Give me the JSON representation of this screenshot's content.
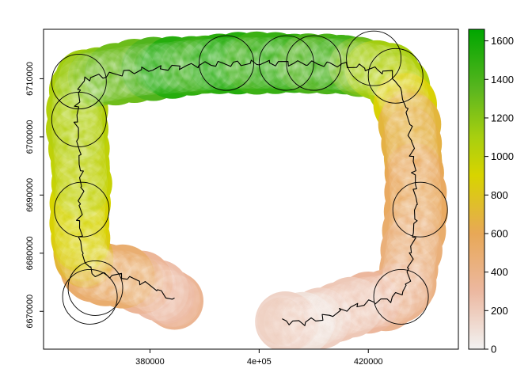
{
  "map": {
    "title": "",
    "x_ticks": [
      {
        "value": 380000,
        "label": "380000"
      },
      {
        "value": 400000,
        "label": "4e+05"
      },
      {
        "value": 420000,
        "label": "420000"
      }
    ],
    "y_ticks": [
      {
        "value": 6670000,
        "label": "6670000"
      },
      {
        "value": 6680000,
        "label": "6680000"
      },
      {
        "value": 6690000,
        "label": "6690000"
      },
      {
        "value": 6700000,
        "label": "6700000"
      },
      {
        "value": 6710000,
        "label": "6710000"
      }
    ],
    "x_range": [
      360500,
      436500
    ],
    "y_range": [
      6663500,
      6718500
    ],
    "colors": {
      "panel_border": "#000000",
      "outline": "#000000",
      "route": "#000000"
    }
  },
  "legend": {
    "ticks": [
      {
        "value": 0,
        "label": "0"
      },
      {
        "value": 200,
        "label": "200"
      },
      {
        "value": 400,
        "label": "400"
      },
      {
        "value": 600,
        "label": "600"
      },
      {
        "value": 800,
        "label": "800"
      },
      {
        "value": 1000,
        "label": "1000"
      },
      {
        "value": 1200,
        "label": "1200"
      },
      {
        "value": 1400,
        "label": "1400"
      },
      {
        "value": 1600,
        "label": "1600"
      }
    ],
    "range": [
      0,
      1660
    ],
    "color_stops": [
      {
        "value": 0,
        "color": "#f2f2f2"
      },
      {
        "value": 300,
        "color": "#ecb8a0"
      },
      {
        "value": 600,
        "color": "#e8a857"
      },
      {
        "value": 900,
        "color": "#d8d400"
      },
      {
        "value": 1100,
        "color": "#a8cf0f"
      },
      {
        "value": 1350,
        "color": "#5ab61f"
      },
      {
        "value": 1660,
        "color": "#00a600"
      }
    ]
  },
  "corridor": {
    "path": [
      [
        384500,
        6671800
      ],
      [
        380000,
        6674500
      ],
      [
        375000,
        6676000
      ],
      [
        369500,
        6676500
      ],
      [
        367500,
        6680000
      ],
      [
        367000,
        6686000
      ],
      [
        367500,
        6692000
      ],
      [
        367000,
        6698000
      ],
      [
        366500,
        6703000
      ],
      [
        367000,
        6708000
      ],
      [
        368000,
        6710000
      ],
      [
        372000,
        6710500
      ],
      [
        378000,
        6711500
      ],
      [
        385000,
        6712000
      ],
      [
        391000,
        6712500
      ],
      [
        397000,
        6712700
      ],
      [
        403000,
        6712700
      ],
      [
        409000,
        6712600
      ],
      [
        415000,
        6712500
      ],
      [
        420000,
        6711800
      ],
      [
        424000,
        6711000
      ],
      [
        426000,
        6708000
      ],
      [
        427500,
        6703000
      ],
      [
        428000,
        6698000
      ],
      [
        428500,
        6693000
      ],
      [
        428800,
        6688000
      ],
      [
        428300,
        6683000
      ],
      [
        427500,
        6678000
      ],
      [
        427000,
        6674000
      ],
      [
        424000,
        6672000
      ],
      [
        420000,
        6671500
      ],
      [
        416000,
        6670500
      ],
      [
        412000,
        6669000
      ],
      [
        408000,
        6668000
      ],
      [
        404000,
        6668300
      ]
    ],
    "circles": [
      [
        367000,
        6709500
      ],
      [
        367000,
        6703000
      ],
      [
        367500,
        6687500
      ],
      [
        370000,
        6674000
      ],
      [
        369000,
        6672500
      ],
      [
        394000,
        6712700
      ],
      [
        405000,
        6712700
      ],
      [
        410000,
        6712700
      ],
      [
        421000,
        6713500
      ],
      [
        425000,
        6710500
      ],
      [
        429500,
        6687500
      ],
      [
        426000,
        6672500
      ]
    ],
    "buffer_radius_m": 5000,
    "elevation_profile": [
      [
        369000,
        6674000,
        420
      ],
      [
        369000,
        6685000,
        900
      ],
      [
        368000,
        6695000,
        1000
      ],
      [
        368000,
        6705000,
        1050
      ],
      [
        375000,
        6711500,
        1300
      ],
      [
        385000,
        6712000,
        1550
      ],
      [
        395000,
        6712700,
        1550
      ],
      [
        405000,
        6712700,
        1500
      ],
      [
        415000,
        6712500,
        1450
      ],
      [
        424000,
        6711000,
        1100
      ],
      [
        427500,
        6700000,
        650
      ],
      [
        428500,
        6690000,
        550
      ],
      [
        427500,
        6679000,
        450
      ],
      [
        424000,
        6672000,
        350
      ],
      [
        416000,
        6670500,
        200
      ],
      [
        408000,
        6668300,
        80
      ],
      [
        381000,
        6674000,
        250
      ]
    ]
  }
}
